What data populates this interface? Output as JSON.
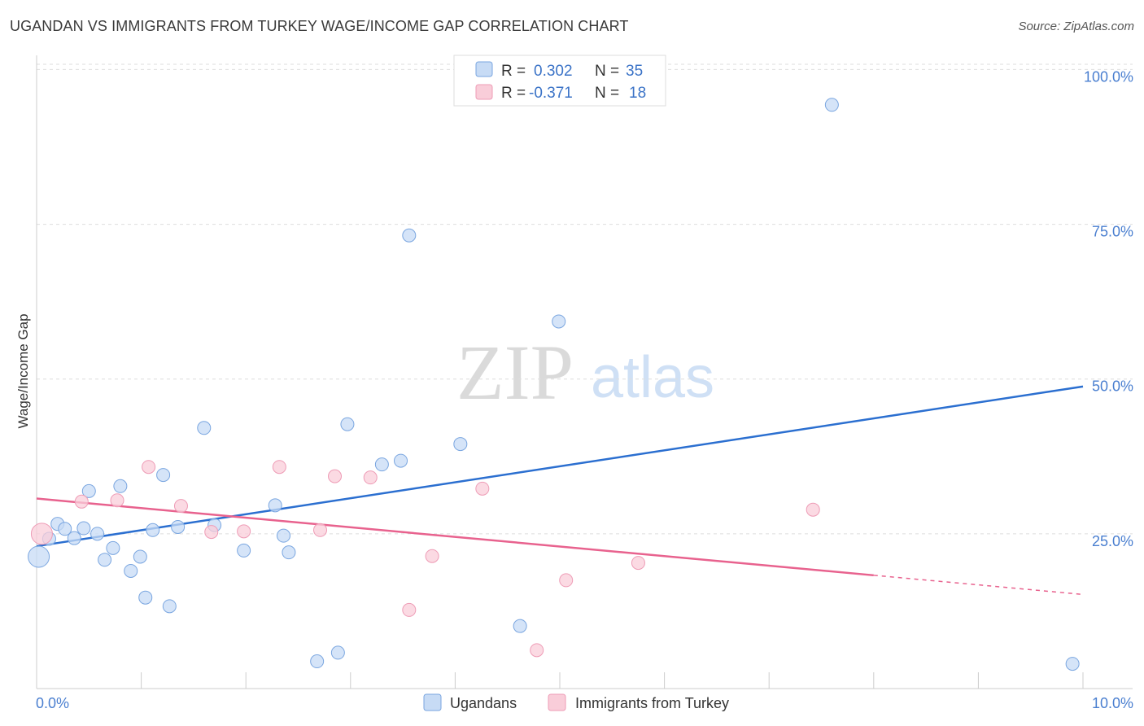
{
  "header": {
    "title": "UGANDAN VS IMMIGRANTS FROM TURKEY WAGE/INCOME GAP CORRELATION CHART",
    "source": "Source: ZipAtlas.com"
  },
  "watermark": {
    "zip": "ZIP",
    "atlas": "atlas"
  },
  "stats": [
    {
      "r_label": "R =",
      "r_value": "0.302",
      "n_label": "N =",
      "n_value": "35",
      "color": "#a9c8f2"
    },
    {
      "r_label": "R =",
      "r_value": "-0.371",
      "n_label": "N =",
      "n_value": "18",
      "color": "#f7b9cc"
    }
  ],
  "chart_data": {
    "type": "scatter",
    "title": "UGANDAN VS IMMIGRANTS FROM TURKEY WAGE/INCOME GAP CORRELATION CHART",
    "xlabel": "",
    "ylabel": "Wage/Income Gap",
    "xlim": [
      0,
      10
    ],
    "ylim": [
      0,
      104
    ],
    "x_tick_labels": [
      "0.0%",
      "10.0%"
    ],
    "y_ticks": [
      25,
      50,
      75,
      100
    ],
    "y_tick_labels": [
      "25.0%",
      "50.0%",
      "75.0%",
      "100.0%"
    ],
    "grid": true,
    "legend_position": "bottom-center",
    "series": [
      {
        "name": "Ugandans",
        "color": "#7aa6e0",
        "fill": "#c7dbf5",
        "line_color": "#2b6fd0",
        "trend": {
          "x": [
            0,
            10
          ],
          "y": [
            23.0,
            48.8
          ]
        },
        "points": [
          {
            "x": 0.02,
            "y": 21.3,
            "big": true
          },
          {
            "x": 0.12,
            "y": 24.2
          },
          {
            "x": 0.2,
            "y": 26.6
          },
          {
            "x": 0.27,
            "y": 25.8
          },
          {
            "x": 0.36,
            "y": 24.3
          },
          {
            "x": 0.45,
            "y": 25.9
          },
          {
            "x": 0.5,
            "y": 31.9
          },
          {
            "x": 0.58,
            "y": 25.0
          },
          {
            "x": 0.65,
            "y": 20.8
          },
          {
            "x": 0.73,
            "y": 22.7
          },
          {
            "x": 0.8,
            "y": 32.7
          },
          {
            "x": 0.9,
            "y": 19.0
          },
          {
            "x": 0.99,
            "y": 21.3
          },
          {
            "x": 1.04,
            "y": 14.7
          },
          {
            "x": 1.11,
            "y": 25.6
          },
          {
            "x": 1.21,
            "y": 34.5
          },
          {
            "x": 1.27,
            "y": 13.3
          },
          {
            "x": 1.35,
            "y": 26.1
          },
          {
            "x": 1.6,
            "y": 42.1
          },
          {
            "x": 1.7,
            "y": 26.4
          },
          {
            "x": 1.98,
            "y": 22.3
          },
          {
            "x": 2.28,
            "y": 29.6
          },
          {
            "x": 2.36,
            "y": 24.7
          },
          {
            "x": 2.41,
            "y": 22.0
          },
          {
            "x": 2.68,
            "y": 4.4
          },
          {
            "x": 2.88,
            "y": 5.8
          },
          {
            "x": 2.97,
            "y": 42.7
          },
          {
            "x": 3.3,
            "y": 36.2
          },
          {
            "x": 3.48,
            "y": 36.8
          },
          {
            "x": 3.56,
            "y": 73.2
          },
          {
            "x": 4.05,
            "y": 39.5
          },
          {
            "x": 4.62,
            "y": 10.1
          },
          {
            "x": 4.99,
            "y": 59.3
          },
          {
            "x": 7.6,
            "y": 94.3
          },
          {
            "x": 9.9,
            "y": 4.0
          }
        ]
      },
      {
        "name": "Immigrants from Turkey",
        "color": "#ee9cb6",
        "fill": "#f9cdd9",
        "line_color": "#e8628e",
        "trend": {
          "x": [
            0,
            10
          ],
          "y": [
            30.7,
            15.2
          ],
          "solid_until_x": 8.0
        },
        "points": [
          {
            "x": 0.05,
            "y": 25.0,
            "big": true
          },
          {
            "x": 0.43,
            "y": 30.2
          },
          {
            "x": 0.77,
            "y": 30.4
          },
          {
            "x": 1.07,
            "y": 35.8
          },
          {
            "x": 1.38,
            "y": 29.5
          },
          {
            "x": 1.67,
            "y": 25.3
          },
          {
            "x": 1.98,
            "y": 25.4
          },
          {
            "x": 2.32,
            "y": 35.8
          },
          {
            "x": 2.71,
            "y": 25.6
          },
          {
            "x": 2.85,
            "y": 34.3
          },
          {
            "x": 3.19,
            "y": 34.1
          },
          {
            "x": 3.56,
            "y": 12.7
          },
          {
            "x": 3.78,
            "y": 21.4
          },
          {
            "x": 4.26,
            "y": 32.3
          },
          {
            "x": 4.78,
            "y": 6.2
          },
          {
            "x": 5.06,
            "y": 17.5
          },
          {
            "x": 5.75,
            "y": 20.3
          },
          {
            "x": 7.42,
            "y": 28.9
          }
        ]
      }
    ]
  }
}
